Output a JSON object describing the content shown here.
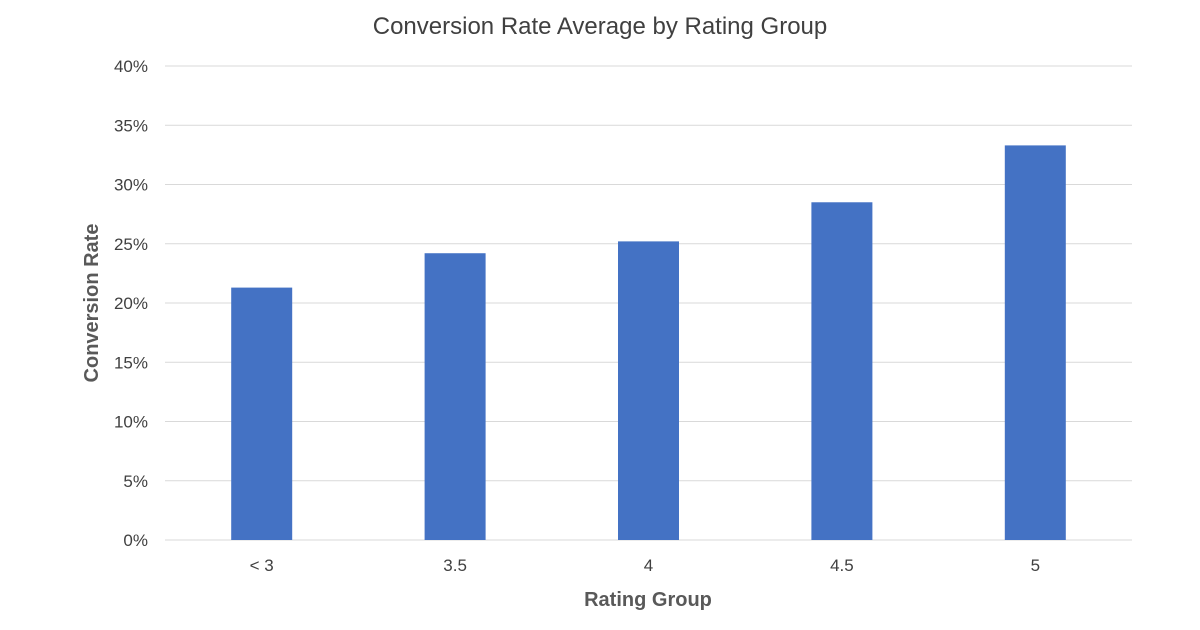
{
  "chart_data": {
    "type": "bar",
    "title": "Conversion Rate Average by Rating Group",
    "xlabel": "Rating Group",
    "ylabel": "Conversion Rate",
    "categories": [
      "< 3",
      "3.5",
      "4",
      "4.5",
      "5"
    ],
    "values": [
      21.3,
      24.2,
      25.2,
      28.5,
      33.3
    ],
    "ylim": [
      0,
      40
    ],
    "yticks": [
      "0%",
      "5%",
      "10%",
      "15%",
      "20%",
      "25%",
      "30%",
      "35%",
      "40%"
    ],
    "grid": true,
    "legend": "none",
    "bar_color": "#4472c4"
  }
}
